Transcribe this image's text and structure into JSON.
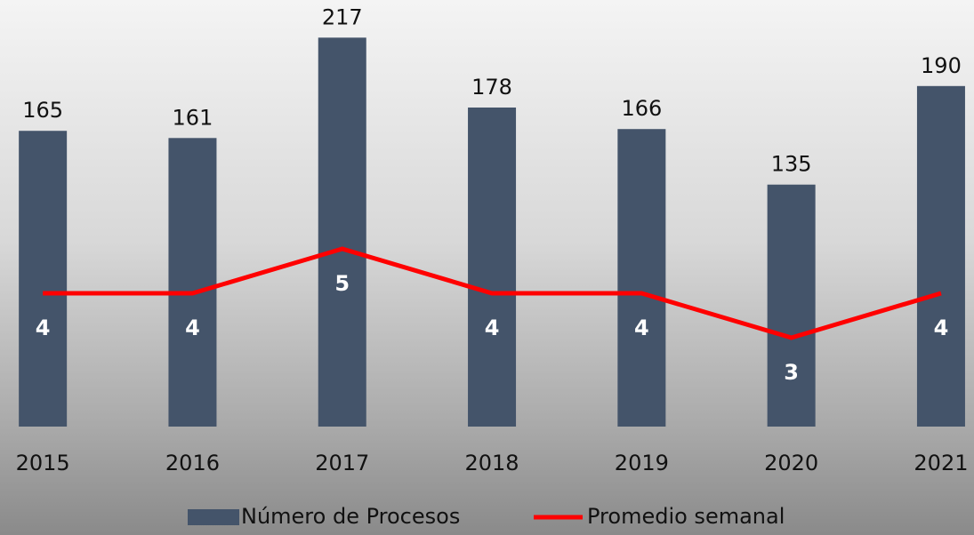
{
  "chart_data": {
    "type": "bar",
    "categories": [
      "2015",
      "2016",
      "2017",
      "2018",
      "2019",
      "2020",
      "2021"
    ],
    "series": [
      {
        "name": "Número de Procesos",
        "type": "bar",
        "color": "#44546a",
        "values": [
          165,
          161,
          217,
          178,
          166,
          135,
          190
        ]
      },
      {
        "name": "Promedio semanal",
        "type": "line",
        "axis": "y2",
        "color": "#ff0000",
        "values": [
          4,
          4,
          5,
          4,
          4,
          3,
          4
        ]
      }
    ],
    "ylim": [
      0,
      238
    ],
    "y2lim": [
      1,
      10.6
    ],
    "grid": false,
    "legend": "bottom"
  }
}
